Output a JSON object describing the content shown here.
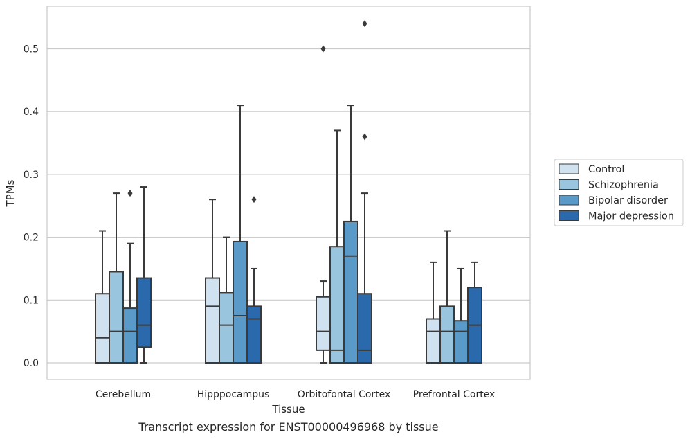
{
  "chart_data": {
    "type": "box",
    "title": "",
    "caption": "Transcript expression for ENST00000496968 by tissue",
    "xlabel": "Tissue",
    "ylabel": "TPMs",
    "ylim": [
      -0.026,
      0.567
    ],
    "yticks": [
      0.0,
      0.1,
      0.2,
      0.3,
      0.4,
      0.5
    ],
    "ytick_labels": [
      "0.0",
      "0.1",
      "0.2",
      "0.3",
      "0.4",
      "0.5"
    ],
    "grid": "horizontal",
    "legend_position": "right",
    "categories": [
      "Cerebellum",
      "Hipppocampus",
      "Orbitofontal Cortex",
      "Prefrontal Cortex"
    ],
    "series": [
      {
        "name": "Control",
        "color": "#d0e1f0",
        "boxes": [
          {
            "whislo": 0.0,
            "q1": 0.0,
            "med": 0.04,
            "q3": 0.11,
            "whishi": 0.21,
            "fliers": []
          },
          {
            "whislo": 0.0,
            "q1": 0.0,
            "med": 0.09,
            "q3": 0.135,
            "whishi": 0.26,
            "fliers": []
          },
          {
            "whislo": 0.0,
            "q1": 0.02,
            "med": 0.05,
            "q3": 0.105,
            "whishi": 0.13,
            "fliers": [
              0.5
            ]
          },
          {
            "whislo": 0.0,
            "q1": 0.0,
            "med": 0.05,
            "q3": 0.07,
            "whishi": 0.16,
            "fliers": []
          }
        ]
      },
      {
        "name": "Schizophrenia",
        "color": "#9ac5de",
        "boxes": [
          {
            "whislo": 0.0,
            "q1": 0.0,
            "med": 0.05,
            "q3": 0.145,
            "whishi": 0.27,
            "fliers": []
          },
          {
            "whislo": 0.0,
            "q1": 0.0,
            "med": 0.06,
            "q3": 0.112,
            "whishi": 0.2,
            "fliers": []
          },
          {
            "whislo": 0.0,
            "q1": 0.0,
            "med": 0.02,
            "q3": 0.185,
            "whishi": 0.37,
            "fliers": []
          },
          {
            "whislo": 0.0,
            "q1": 0.0,
            "med": 0.05,
            "q3": 0.09,
            "whishi": 0.21,
            "fliers": []
          }
        ]
      },
      {
        "name": "Bipolar disorder",
        "color": "#5a9ac8",
        "boxes": [
          {
            "whislo": 0.0,
            "q1": 0.0,
            "med": 0.05,
            "q3": 0.087,
            "whishi": 0.19,
            "fliers": [
              0.27
            ]
          },
          {
            "whislo": 0.0,
            "q1": 0.0,
            "med": 0.075,
            "q3": 0.193,
            "whishi": 0.41,
            "fliers": []
          },
          {
            "whislo": 0.0,
            "q1": 0.0,
            "med": 0.17,
            "q3": 0.225,
            "whishi": 0.41,
            "fliers": []
          },
          {
            "whislo": 0.0,
            "q1": 0.0,
            "med": 0.05,
            "q3": 0.067,
            "whishi": 0.15,
            "fliers": []
          }
        ]
      },
      {
        "name": "Major depression",
        "color": "#2a6aac",
        "boxes": [
          {
            "whislo": 0.0,
            "q1": 0.025,
            "med": 0.06,
            "q3": 0.135,
            "whishi": 0.28,
            "fliers": []
          },
          {
            "whislo": 0.0,
            "q1": 0.0,
            "med": 0.07,
            "q3": 0.09,
            "whishi": 0.15,
            "fliers": [
              0.26
            ]
          },
          {
            "whislo": 0.0,
            "q1": 0.0,
            "med": 0.02,
            "q3": 0.11,
            "whishi": 0.27,
            "fliers": [
              0.36,
              0.54
            ]
          },
          {
            "whislo": 0.0,
            "q1": 0.0,
            "med": 0.06,
            "q3": 0.12,
            "whishi": 0.16,
            "fliers": []
          }
        ]
      }
    ]
  }
}
